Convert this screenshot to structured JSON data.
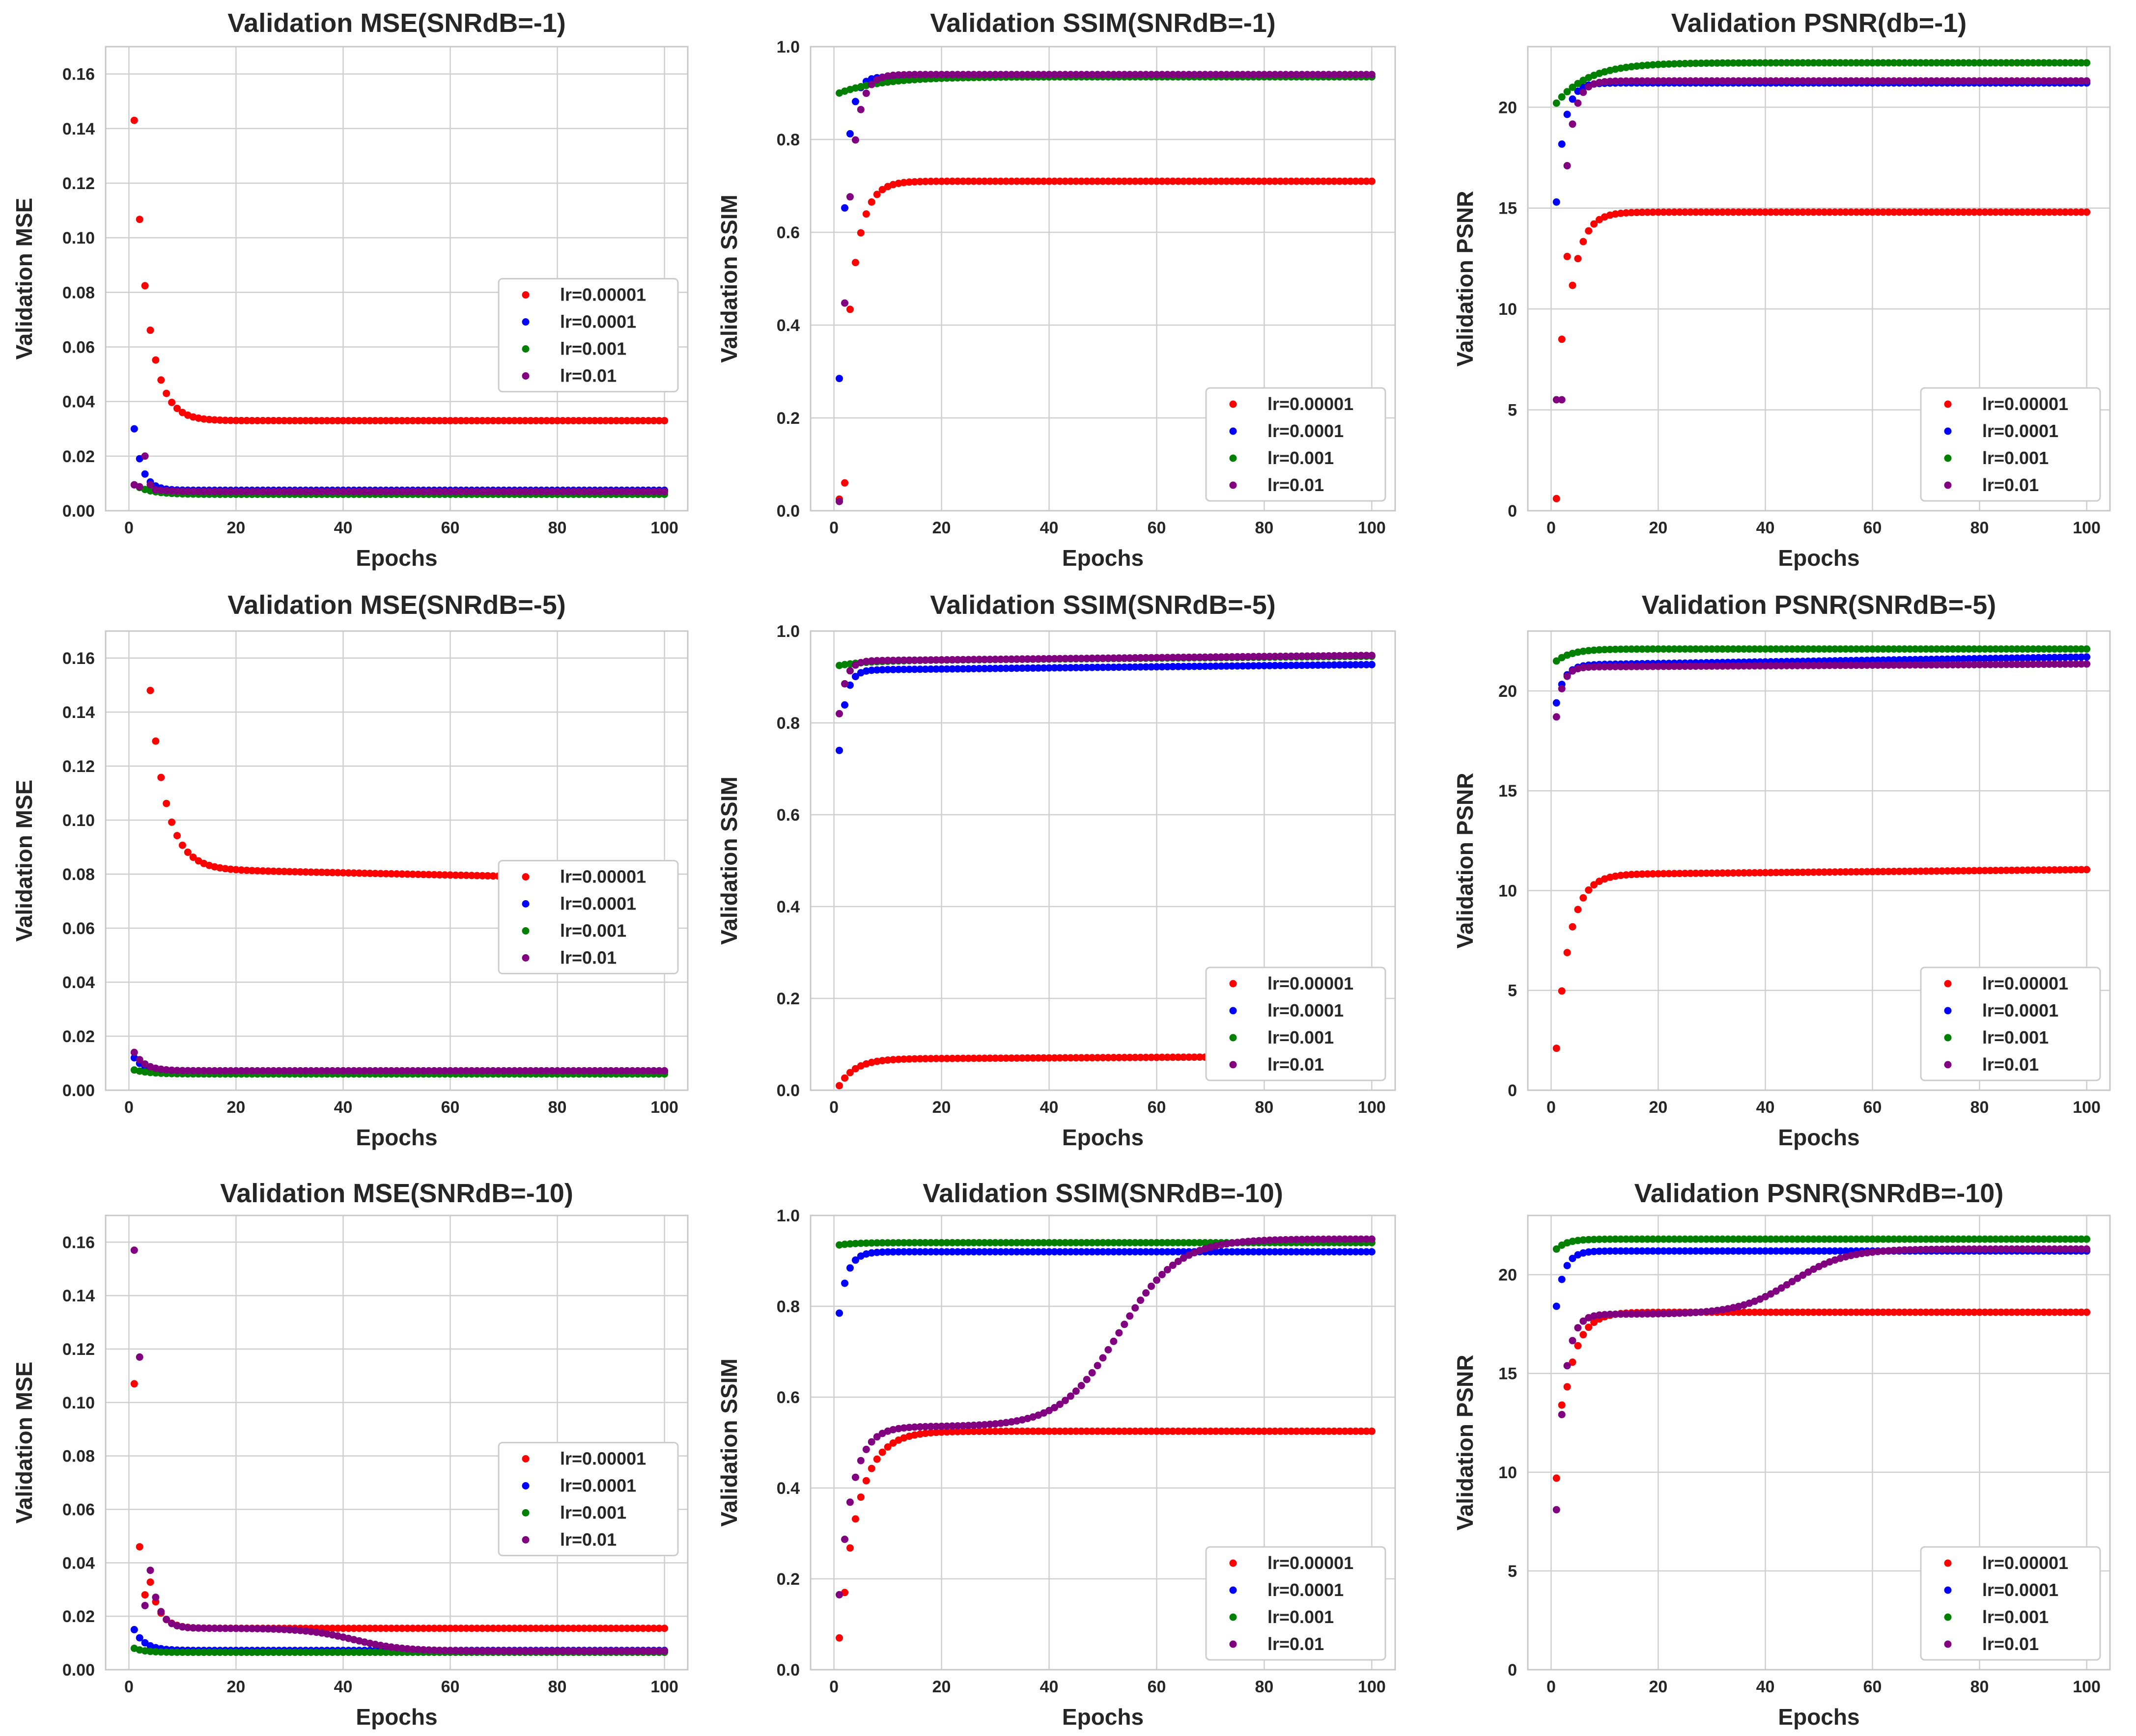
{
  "legend_labels": [
    "lr=0.00001",
    "lr=0.0001",
    "lr=0.001",
    "lr=0.01"
  ],
  "series_colors": {
    "lr=0.00001": "#ff0000",
    "lr=0.0001": "#0000ff",
    "lr=0.001": "#008000",
    "lr=0.01": "#800080"
  },
  "epochs": 100,
  "chart_data": [
    {
      "type": "scatter",
      "title": "Validation MSE(SNRdB=-1)",
      "xlabel": "Epochs",
      "ylabel": "Validation MSE",
      "xlim": [
        0,
        100
      ],
      "ylim": [
        0,
        0.17
      ],
      "xticks": [
        0,
        20,
        40,
        60,
        80,
        100
      ],
      "xtick_labels": [
        "0",
        "20",
        "40",
        "60",
        "80",
        "100"
      ],
      "yticks": [
        0,
        0.02,
        0.04,
        0.06,
        0.08,
        0.1,
        0.12,
        0.14,
        0.16
      ],
      "ytick_labels": [
        "0.00",
        "0.02",
        "0.04",
        "0.06",
        "0.08",
        "0.10",
        "0.12",
        "0.14",
        "0.16"
      ],
      "legend": "right",
      "series": [
        {
          "name": "lr=0.00001",
          "color": "#ff0000",
          "model": {
            "type": "exp",
            "start": 0.143,
            "end": 0.033,
            "tau": 2.5
          }
        },
        {
          "name": "lr=0.0001",
          "color": "#0000ff",
          "model": {
            "type": "exp",
            "start": 0.03,
            "end": 0.0075,
            "tau": 1.5
          }
        },
        {
          "name": "lr=0.001",
          "color": "#008000",
          "model": {
            "type": "exp",
            "start": 0.0095,
            "end": 0.006,
            "tau": 3
          }
        },
        {
          "name": "lr=0.01",
          "color": "#800080",
          "model": {
            "type": "exp",
            "start": 0.0095,
            "end": 0.007,
            "tau": 3,
            "overrides": [
              [
                3,
                0.02
              ],
              [
                4,
                0.0095
              ]
            ]
          }
        }
      ]
    },
    {
      "type": "scatter",
      "title": "Validation SSIM(SNRdB=-1)",
      "xlabel": "Epochs",
      "ylabel": "Validation SSIM",
      "xlim": [
        0,
        100
      ],
      "ylim": [
        0,
        1.0
      ],
      "xticks": [
        0,
        20,
        40,
        60,
        80,
        100
      ],
      "xtick_labels": [
        "0",
        "20",
        "40",
        "60",
        "80",
        "100"
      ],
      "yticks": [
        0,
        0.2,
        0.4,
        0.6,
        0.8,
        1.0
      ],
      "ytick_labels": [
        "0.0",
        "0.2",
        "0.4",
        "0.6",
        "0.8",
        "1.0"
      ],
      "legend": "lower right",
      "series": [
        {
          "name": "lr=0.00001",
          "color": "#ff0000",
          "model": {
            "type": "exp",
            "start": 0.025,
            "end": 0.71,
            "tau": 2.2,
            "overrides": [
              [
                2,
                0.06
              ]
            ]
          }
        },
        {
          "name": "lr=0.0001",
          "color": "#0000ff",
          "model": {
            "type": "exp",
            "start": 0.285,
            "end": 0.935,
            "tau": 1.2
          }
        },
        {
          "name": "lr=0.001",
          "color": "#008000",
          "model": {
            "type": "exp",
            "start": 0.9,
            "end": 0.935,
            "tau": 8
          }
        },
        {
          "name": "lr=0.01",
          "color": "#800080",
          "model": {
            "type": "exp",
            "start": 0.02,
            "end": 0.94,
            "tau": 1.6
          }
        }
      ]
    },
    {
      "type": "scatter",
      "title": "Validation PSNR(db=-1)",
      "xlabel": "Epochs",
      "ylabel": "Validation PSNR",
      "xlim": [
        0,
        100
      ],
      "ylim": [
        0,
        23
      ],
      "xticks": [
        0,
        20,
        40,
        60,
        80,
        100
      ],
      "xtick_labels": [
        "0",
        "20",
        "40",
        "60",
        "80",
        "100"
      ],
      "yticks": [
        0,
        5,
        10,
        15,
        20
      ],
      "ytick_labels": [
        "0",
        "5",
        "10",
        "15",
        "20"
      ],
      "legend": "lower right",
      "series": [
        {
          "name": "lr=0.00001",
          "color": "#ff0000",
          "model": {
            "type": "exp",
            "start": 0.6,
            "end": 14.8,
            "tau": 2.2,
            "overrides": [
              [
                2,
                8.5
              ],
              [
                3,
                12.6
              ]
            ]
          }
        },
        {
          "name": "lr=0.0001",
          "color": "#0000ff",
          "model": {
            "type": "exp",
            "start": 15.3,
            "end": 21.2,
            "tau": 1.5
          }
        },
        {
          "name": "lr=0.001",
          "color": "#008000",
          "model": {
            "type": "exp",
            "start": 20.2,
            "end": 22.2,
            "tau": 6
          }
        },
        {
          "name": "lr=0.01",
          "color": "#800080",
          "model": {
            "type": "exp",
            "start": 5.5,
            "end": 21.3,
            "tau": 1.5,
            "overrides": [
              [
                2,
                5.5
              ],
              [
                3,
                17.1
              ]
            ]
          }
        }
      ]
    },
    {
      "type": "scatter",
      "title": "Validation MSE(SNRdB=-5)",
      "xlabel": "Epochs",
      "ylabel": "Validation MSE",
      "xlim": [
        0,
        100
      ],
      "ylim": [
        0,
        0.17
      ],
      "xticks": [
        0,
        20,
        40,
        60,
        80,
        100
      ],
      "xtick_labels": [
        "0",
        "20",
        "40",
        "60",
        "80",
        "100"
      ],
      "yticks": [
        0,
        0.02,
        0.04,
        0.06,
        0.08,
        0.1,
        0.12,
        0.14,
        0.16
      ],
      "ytick_labels": [
        "0.00",
        "0.02",
        "0.04",
        "0.06",
        "0.08",
        "0.10",
        "0.12",
        "0.14",
        "0.16"
      ],
      "legend": "right",
      "series": [
        {
          "name": "lr=0.00001",
          "color": "#ff0000",
          "model": {
            "type": "exp",
            "start": 0.148,
            "end": 0.082,
            "tau": 3,
            "from": 4,
            "drift": -0.004
          }
        },
        {
          "name": "lr=0.0001",
          "color": "#0000ff",
          "model": {
            "type": "exp",
            "start": 0.012,
            "end": 0.0068,
            "tau": 2
          }
        },
        {
          "name": "lr=0.001",
          "color": "#008000",
          "model": {
            "type": "exp",
            "start": 0.0075,
            "end": 0.006,
            "tau": 3
          }
        },
        {
          "name": "lr=0.01",
          "color": "#800080",
          "model": {
            "type": "exp",
            "start": 0.014,
            "end": 0.0072,
            "tau": 2
          }
        }
      ]
    },
    {
      "type": "scatter",
      "title": "Validation SSIM(SNRdB=-5)",
      "xlabel": "Epochs",
      "ylabel": "Validation SSIM",
      "xlim": [
        0,
        100
      ],
      "ylim": [
        0,
        1.0
      ],
      "xticks": [
        0,
        20,
        40,
        60,
        80,
        100
      ],
      "xtick_labels": [
        "0",
        "20",
        "40",
        "60",
        "80",
        "100"
      ],
      "yticks": [
        0,
        0.2,
        0.4,
        0.6,
        0.8,
        1.0
      ],
      "ytick_labels": [
        "0.0",
        "0.2",
        "0.4",
        "0.6",
        "0.8",
        "1.0"
      ],
      "legend": "lower right",
      "series": [
        {
          "name": "lr=0.00001",
          "color": "#ff0000",
          "model": {
            "type": "exp",
            "start": 0.01,
            "end": 0.068,
            "tau": 3,
            "drift": 0.006
          }
        },
        {
          "name": "lr=0.0001",
          "color": "#0000ff",
          "model": {
            "type": "exp",
            "start": 0.74,
            "end": 0.915,
            "tau": 1.2,
            "drift": 0.012
          }
        },
        {
          "name": "lr=0.001",
          "color": "#008000",
          "model": {
            "type": "exp",
            "start": 0.925,
            "end": 0.935,
            "tau": 5,
            "drift": 0.01
          }
        },
        {
          "name": "lr=0.01",
          "color": "#800080",
          "model": {
            "type": "exp",
            "start": 0.82,
            "end": 0.935,
            "tau": 1.2,
            "drift": 0.012
          }
        }
      ]
    },
    {
      "type": "scatter",
      "title": "Validation PSNR(SNRdB=-5)",
      "xlabel": "Epochs",
      "ylabel": "Validation PSNR",
      "xlim": [
        0,
        100
      ],
      "ylim": [
        0,
        23
      ],
      "xticks": [
        0,
        20,
        40,
        60,
        80,
        100
      ],
      "xtick_labels": [
        "0",
        "20",
        "40",
        "60",
        "80",
        "100"
      ],
      "yticks": [
        0,
        5,
        10,
        15,
        20
      ],
      "ytick_labels": [
        "0",
        "5",
        "10",
        "15",
        "20"
      ],
      "legend": "lower right",
      "series": [
        {
          "name": "lr=0.00001",
          "color": "#ff0000",
          "model": {
            "type": "exp",
            "start": 2.1,
            "end": 10.8,
            "tau": 2.5,
            "drift": 0.25
          }
        },
        {
          "name": "lr=0.0001",
          "color": "#0000ff",
          "model": {
            "type": "exp",
            "start": 19.4,
            "end": 21.3,
            "tau": 1.5,
            "drift": 0.4
          }
        },
        {
          "name": "lr=0.001",
          "color": "#008000",
          "model": {
            "type": "exp",
            "start": 21.5,
            "end": 22.1,
            "tau": 3
          }
        },
        {
          "name": "lr=0.01",
          "color": "#800080",
          "model": {
            "type": "exp",
            "start": 18.7,
            "end": 21.2,
            "tau": 1.2,
            "drift": 0.15
          }
        }
      ]
    },
    {
      "type": "scatter",
      "title": "Validation MSE(SNRdB=-10)",
      "xlabel": "Epochs",
      "ylabel": "Validation MSE",
      "xlim": [
        0,
        100
      ],
      "ylim": [
        0,
        0.17
      ],
      "xticks": [
        0,
        20,
        40,
        60,
        80,
        100
      ],
      "xtick_labels": [
        "0",
        "20",
        "40",
        "60",
        "80",
        "100"
      ],
      "yticks": [
        0,
        0.02,
        0.04,
        0.06,
        0.08,
        0.1,
        0.12,
        0.14,
        0.16
      ],
      "ytick_labels": [
        "0.00",
        "0.02",
        "0.04",
        "0.06",
        "0.08",
        "0.10",
        "0.12",
        "0.14",
        "0.16"
      ],
      "legend": "right",
      "series": [
        {
          "name": "lr=0.00001",
          "color": "#ff0000",
          "model": {
            "type": "exp",
            "start": 0.107,
            "end": 0.0155,
            "tau": 1.8,
            "overrides": [
              [
                2,
                0.046
              ],
              [
                3,
                0.028
              ]
            ]
          }
        },
        {
          "name": "lr=0.0001",
          "color": "#0000ff",
          "model": {
            "type": "exp",
            "start": 0.015,
            "end": 0.0072,
            "tau": 2
          }
        },
        {
          "name": "lr=0.001",
          "color": "#008000",
          "model": {
            "type": "exp",
            "start": 0.008,
            "end": 0.0065,
            "tau": 2
          }
        },
        {
          "name": "lr=0.01",
          "color": "#800080",
          "model": {
            "type": "twostage",
            "start": 0.157,
            "mid": 0.0155,
            "end": 0.007,
            "tau": 1.6,
            "center": 42,
            "width": 4.5,
            "overrides": [
              [
                2,
                0.117
              ],
              [
                3,
                0.024
              ]
            ]
          }
        }
      ]
    },
    {
      "type": "scatter",
      "title": "Validation SSIM(SNRdB=-10)",
      "xlabel": "Epochs",
      "ylabel": "Validation SSIM",
      "xlim": [
        0,
        100
      ],
      "ylim": [
        0,
        1.0
      ],
      "xticks": [
        0,
        20,
        40,
        60,
        80,
        100
      ],
      "xtick_labels": [
        "0",
        "20",
        "40",
        "60",
        "80",
        "100"
      ],
      "yticks": [
        0,
        0.2,
        0.4,
        0.6,
        0.8,
        1.0
      ],
      "ytick_labels": [
        "0.0",
        "0.2",
        "0.4",
        "0.6",
        "0.8",
        "1.0"
      ],
      "legend": "lower right",
      "series": [
        {
          "name": "lr=0.00001",
          "color": "#ff0000",
          "model": {
            "type": "exp",
            "start": 0.07,
            "end": 0.525,
            "tau": 3.5,
            "overrides": [
              [
                2,
                0.17
              ]
            ]
          }
        },
        {
          "name": "lr=0.0001",
          "color": "#0000ff",
          "model": {
            "type": "exp",
            "start": 0.785,
            "end": 0.92,
            "tau": 1.5
          }
        },
        {
          "name": "lr=0.001",
          "color": "#008000",
          "model": {
            "type": "exp",
            "start": 0.935,
            "end": 0.94,
            "tau": 3
          }
        },
        {
          "name": "lr=0.01",
          "color": "#800080",
          "model": {
            "type": "twostage",
            "start": 0.165,
            "mid": 0.535,
            "end": 0.948,
            "tau": 2.5,
            "center": 53,
            "width": 5.5
          }
        }
      ]
    },
    {
      "type": "scatter",
      "title": "Validation PSNR(SNRdB=-10)",
      "xlabel": "Epochs",
      "ylabel": "Validation PSNR",
      "xlim": [
        0,
        100
      ],
      "ylim": [
        0,
        23
      ],
      "xticks": [
        0,
        20,
        40,
        60,
        80,
        100
      ],
      "xtick_labels": [
        "0",
        "20",
        "40",
        "60",
        "80",
        "100"
      ],
      "yticks": [
        0,
        5,
        10,
        15,
        20
      ],
      "ytick_labels": [
        "0",
        "5",
        "10",
        "15",
        "20"
      ],
      "legend": "lower right",
      "series": [
        {
          "name": "lr=0.00001",
          "color": "#ff0000",
          "model": {
            "type": "exp",
            "start": 9.7,
            "end": 18.1,
            "tau": 2.5,
            "overrides": [
              [
                2,
                13.4
              ]
            ]
          }
        },
        {
          "name": "lr=0.0001",
          "color": "#0000ff",
          "model": {
            "type": "exp",
            "start": 18.4,
            "end": 21.2,
            "tau": 1.5
          }
        },
        {
          "name": "lr=0.001",
          "color": "#008000",
          "model": {
            "type": "exp",
            "start": 21.3,
            "end": 21.8,
            "tau": 2
          }
        },
        {
          "name": "lr=0.01",
          "color": "#800080",
          "model": {
            "type": "twostage",
            "start": 8.1,
            "mid": 18.0,
            "end": 21.3,
            "tau": 1.5,
            "center": 45,
            "width": 5
          }
        }
      ]
    }
  ]
}
